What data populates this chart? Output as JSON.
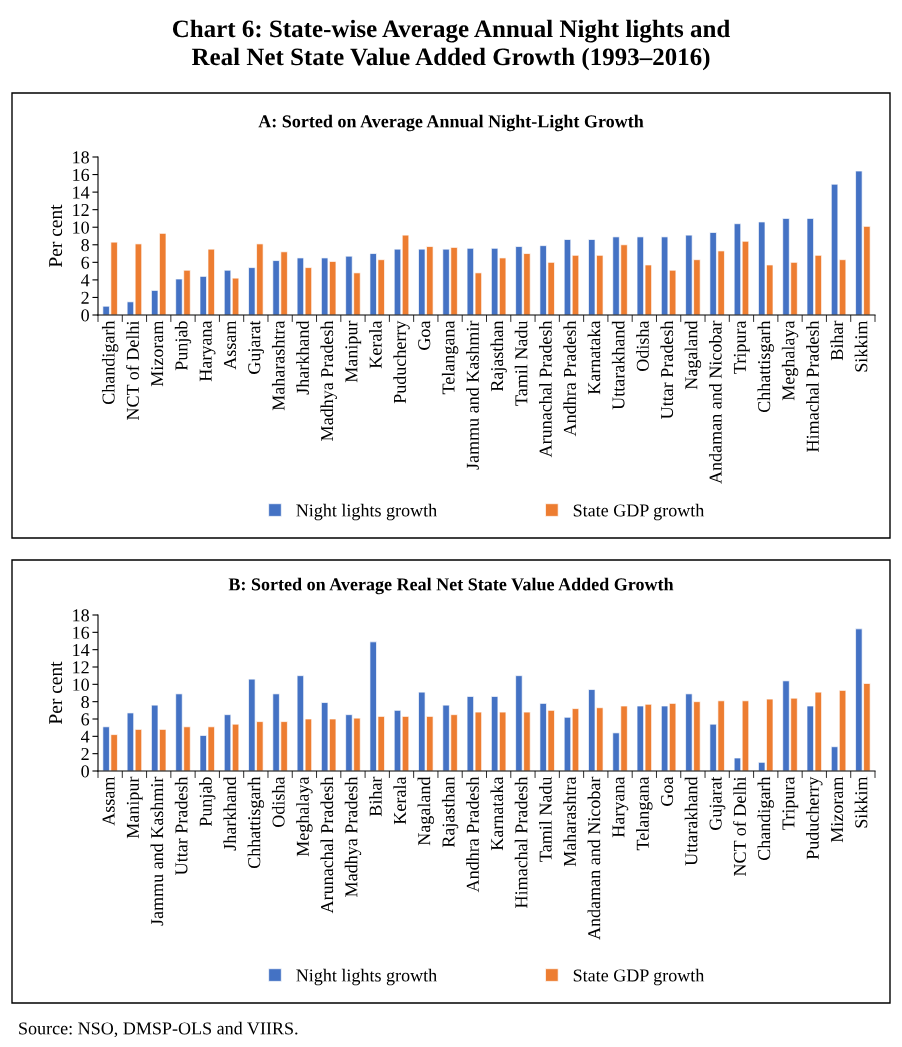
{
  "chart_data": [
    {
      "type": "bar",
      "title": "Chart 6: State-wise Average Annual Night lights and\nReal Net State Value Added Growth (1993–2016)",
      "subtitle": "A: Sorted on Average Annual Night-Light Growth",
      "ylabel": "Per cent",
      "categories": [
        "Chandigarh",
        "NCT of Delhi",
        "Mizoram",
        "Punjab",
        "Haryana",
        "Assam",
        "Gujarat",
        "Maharashtra",
        "Jharkhand",
        "Madhya Pradesh",
        "Manipur",
        "Kerala",
        "Puducherry",
        "Goa",
        "Telangana",
        "Jammu and Kashmir",
        "Rajasthan",
        "Tamil Nadu",
        "Arunachal Pradesh",
        "Andhra Pradesh",
        "Karnataka",
        "Uttarakhand",
        "Odisha",
        "Uttar Pradesh",
        "Nagaland",
        "Andaman and Nicobar",
        "Tripura",
        "Chhattisgarh",
        "Meghalaya",
        "Himachal Pradesh",
        "Bihar",
        "Sikkim"
      ],
      "series": [
        {
          "name": "Night lights growth",
          "color": "#4472c4",
          "values": [
            1.0,
            1.5,
            2.8,
            4.1,
            4.4,
            5.1,
            5.4,
            6.2,
            6.5,
            6.5,
            6.7,
            7.0,
            7.5,
            7.5,
            7.5,
            7.6,
            7.6,
            7.8,
            7.9,
            8.6,
            8.6,
            8.9,
            8.9,
            8.9,
            9.1,
            9.4,
            10.4,
            10.6,
            11.0,
            11.0,
            14.9,
            16.4
          ]
        },
        {
          "name": "State GDP growth",
          "color": "#ed7d31",
          "values": [
            8.3,
            8.1,
            9.3,
            5.1,
            7.5,
            4.2,
            8.1,
            7.2,
            5.4,
            6.1,
            4.8,
            6.3,
            9.1,
            7.8,
            7.7,
            4.8,
            6.5,
            7.0,
            6.0,
            6.8,
            6.8,
            8.0,
            5.7,
            5.1,
            6.3,
            7.3,
            8.4,
            5.7,
            6.0,
            6.8,
            6.3,
            10.1
          ]
        }
      ],
      "ylim": [
        0,
        18
      ],
      "yticks": [
        0,
        2,
        4,
        6,
        8,
        10,
        12,
        14,
        16,
        18
      ],
      "grid": false,
      "legend": "bottom"
    },
    {
      "type": "bar",
      "title": "B: Sorted on Average Real Net State Value Added Growth",
      "ylabel": "Per cent",
      "categories": [
        "Assam",
        "Manipur",
        "Jammu and Kashmir",
        "Uttar Pradesh",
        "Punjab",
        "Jharkhand",
        "Chhattisgarh",
        "Odisha",
        "Meghalaya",
        "Arunachal Pradesh",
        "Madhya Pradesh",
        "Bihar",
        "Kerala",
        "Nagaland",
        "Rajasthan",
        "Andhra Pradesh",
        "Karnataka",
        "Himachal Pradesh",
        "Tamil Nadu",
        "Maharashtra",
        "Andaman and Nicobar",
        "Haryana",
        "Telangana",
        "Goa",
        "Uttarakhand",
        "Gujarat",
        "NCT of Delhi",
        "Chandigarh",
        "Tripura",
        "Puducherry",
        "Mizoram",
        "Sikkim"
      ],
      "series": [
        {
          "name": "Night lights growth",
          "color": "#4472c4",
          "values": [
            5.1,
            6.7,
            7.6,
            8.9,
            4.1,
            6.5,
            10.6,
            8.9,
            11.0,
            7.9,
            6.5,
            14.9,
            7.0,
            9.1,
            7.6,
            8.6,
            8.6,
            11.0,
            7.8,
            6.2,
            9.4,
            4.4,
            7.5,
            7.5,
            8.9,
            5.4,
            1.5,
            1.0,
            10.4,
            7.5,
            2.8,
            16.4
          ]
        },
        {
          "name": "State GDP growth",
          "color": "#ed7d31",
          "values": [
            4.2,
            4.8,
            4.8,
            5.1,
            5.1,
            5.4,
            5.7,
            5.7,
            6.0,
            6.0,
            6.1,
            6.3,
            6.3,
            6.3,
            6.5,
            6.8,
            6.8,
            6.8,
            7.0,
            7.2,
            7.3,
            7.5,
            7.7,
            7.8,
            8.0,
            8.1,
            8.1,
            8.3,
            8.4,
            9.1,
            9.3,
            10.1
          ]
        }
      ],
      "ylim": [
        0,
        18
      ],
      "yticks": [
        0,
        2,
        4,
        6,
        8,
        10,
        12,
        14,
        16,
        18
      ],
      "grid": false,
      "legend": "bottom",
      "annotations": [
        "Source: NSO, DMSP-OLS and VIIRS."
      ]
    }
  ]
}
